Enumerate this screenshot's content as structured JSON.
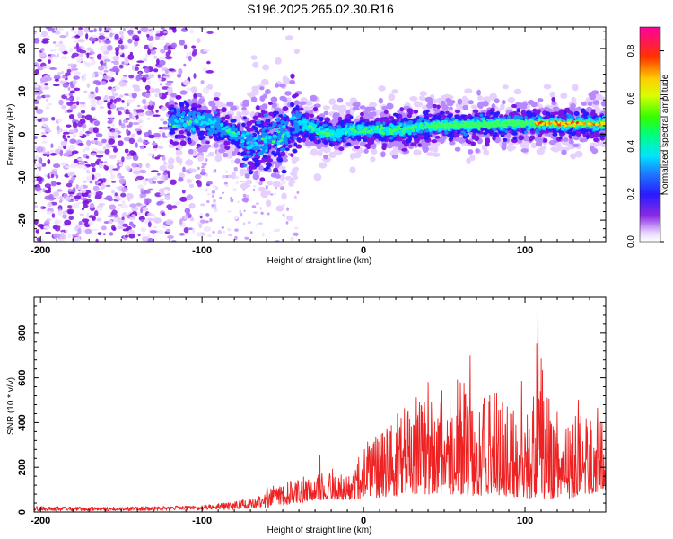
{
  "title": "S196.2025.265.02.30.R16",
  "colors": {
    "snr_line": "#ee2222",
    "background": "#ffffff",
    "axis": "#000000"
  },
  "chart_data": [
    {
      "type": "heatmap",
      "name": "spectrogram",
      "xlabel": "Height of straight line (km)",
      "ylabel": "Frequency (Hz)",
      "xlim": [
        -204,
        150
      ],
      "ylim": [
        -25,
        25
      ],
      "x_ticks": [
        -200,
        -100,
        0,
        100
      ],
      "x_tick_labels": [
        "-200",
        "-100",
        "0",
        "100"
      ],
      "y_ticks": [
        -20,
        -10,
        0,
        10,
        20
      ],
      "y_tick_labels": [
        "-20",
        "-10",
        "0",
        "10",
        "20"
      ],
      "colorbar": {
        "label": "Normalized spectral amplitude",
        "range": [
          0,
          0.9
        ],
        "ticks": [
          0.0,
          0.2,
          0.4,
          0.6,
          0.8
        ],
        "tick_labels": [
          "0.0",
          "0.2",
          "0.4",
          "0.6",
          "0.8"
        ],
        "colormap": "rainbow (white-purple-blue-cyan-green-yellow-red-magenta)"
      },
      "ridge": {
        "x": [
          -120,
          -100,
          -90,
          -80,
          -70,
          -60,
          -50,
          -40,
          -30,
          -20,
          -10,
          0,
          20,
          40,
          60,
          80,
          100,
          120,
          150
        ],
        "freq_hz": [
          3,
          3,
          2,
          0,
          -3,
          -1,
          0,
          3,
          1,
          0,
          1,
          1,
          1,
          2,
          2,
          2.5,
          2.5,
          2.5,
          2.5
        ]
      }
    },
    {
      "type": "line",
      "name": "snr",
      "xlabel": "Height of straight line (km)",
      "ylabel": "SNR (10 * v/v)",
      "xlim": [
        -204,
        150
      ],
      "ylim": [
        0,
        960
      ],
      "x_ticks": [
        -200,
        -100,
        0,
        100
      ],
      "x_tick_labels": [
        "-200",
        "-100",
        "0",
        "100"
      ],
      "y_ticks": [
        0,
        200,
        400,
        600,
        800
      ],
      "y_tick_labels": [
        "0",
        "200",
        "400",
        "600",
        "800"
      ],
      "envelope": {
        "x": [
          -204,
          -150,
          -100,
          -80,
          -60,
          -40,
          -20,
          -10,
          0,
          20,
          30,
          40,
          50,
          60,
          70,
          80,
          90,
          100,
          105,
          108,
          112,
          120,
          130,
          140,
          150
        ],
        "max": [
          35,
          30,
          40,
          60,
          110,
          150,
          200,
          160,
          300,
          420,
          520,
          520,
          560,
          600,
          520,
          540,
          520,
          470,
          500,
          960,
          560,
          450,
          450,
          420,
          400
        ],
        "min": [
          5,
          5,
          8,
          10,
          20,
          40,
          60,
          50,
          60,
          70,
          80,
          80,
          80,
          80,
          70,
          80,
          70,
          60,
          60,
          80,
          60,
          60,
          60,
          80,
          100
        ]
      },
      "peaks": [
        {
          "x": -27,
          "y": 255
        },
        {
          "x": 21,
          "y": 440
        },
        {
          "x": 40,
          "y": 580
        },
        {
          "x": 66,
          "y": 700
        },
        {
          "x": 98,
          "y": 585
        },
        {
          "x": 108,
          "y": 960
        },
        {
          "x": 133,
          "y": 500
        },
        {
          "x": 145,
          "y": 465
        }
      ]
    }
  ]
}
